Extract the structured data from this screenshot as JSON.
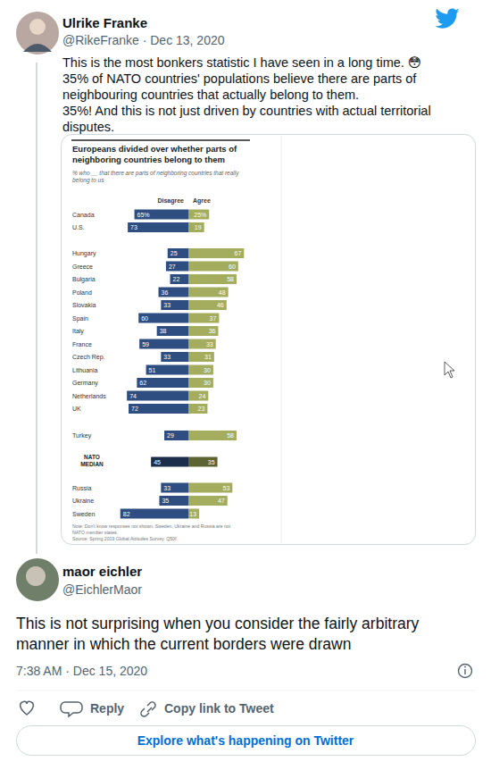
{
  "tweet": {
    "author_name": "Ulrike Franke",
    "byline": "@RikeFranke · Dec 13, 2020",
    "text_lines": [
      "This is the most bonkers statistic I have seen in a long time. 😳",
      "35% of NATO countries' populations believe there are parts of",
      "neighbouring countries that actually belong to them.",
      "35%! And this is not just driven by countries with actual territorial",
      "disputes."
    ]
  },
  "chart_data": {
    "type": "bar",
    "orientation": "horizontal",
    "title": "Europeans divided over whether parts of neighboring countries belong to them",
    "subtitle": "% who __ that there are parts of neighboring countries that really belong to us",
    "note": "Note: Don't know responses not shown. Sweden, Ukraine and Russia are not NATO member states.",
    "source": "Source: Spring 2019 Global Attitudes Survey. Q50f.",
    "categories": [
      "Canada",
      "U.S.",
      "Hungary",
      "Greece",
      "Bulgaria",
      "Poland",
      "Slovakia",
      "Spain",
      "Italy",
      "France",
      "Czech Rep.",
      "Lithuania",
      "Germany",
      "Netherlands",
      "UK",
      "Turkey",
      "NATO MEDIAN",
      "Russia",
      "Ukraine",
      "Sweden"
    ],
    "series": [
      {
        "name": "Disagree",
        "colors": [
          "#2e4d80",
          "#2e4d80",
          "#2e4d80",
          "#2e4d80",
          "#2e4d80",
          "#2e4d80",
          "#2e4d80",
          "#2e4d80",
          "#2e4d80",
          "#2e4d80",
          "#2e4d80",
          "#2e4d80",
          "#2e4d80",
          "#2e4d80",
          "#2e4d80",
          "#2e4d80",
          "#1c2d4b",
          "#2e4d80",
          "#2e4d80",
          "#2e4d80"
        ],
        "values": [
          65,
          73,
          25,
          27,
          22,
          36,
          33,
          60,
          38,
          59,
          33,
          51,
          62,
          74,
          72,
          29,
          45,
          33,
          35,
          82
        ],
        "value_labels": [
          "65%",
          "73",
          "25",
          "27",
          "22",
          "36",
          "33",
          "60",
          "38",
          "59",
          "33",
          "51",
          "62",
          "74",
          "72",
          "29",
          "45",
          "33",
          "35",
          "82"
        ]
      },
      {
        "name": "Agree",
        "colors": [
          "#a4ac5e",
          "#a4ac5e",
          "#a4ac5e",
          "#a4ac5e",
          "#a4ac5e",
          "#a4ac5e",
          "#a4ac5e",
          "#a4ac5e",
          "#a4ac5e",
          "#a4ac5e",
          "#a4ac5e",
          "#a4ac5e",
          "#a4ac5e",
          "#a4ac5e",
          "#a4ac5e",
          "#a4ac5e",
          "#5c6434",
          "#a4ac5e",
          "#a4ac5e",
          "#a4ac5e"
        ],
        "values": [
          25,
          19,
          67,
          60,
          58,
          48,
          46,
          37,
          36,
          33,
          31,
          30,
          30,
          24,
          23,
          58,
          35,
          53,
          47,
          13
        ],
        "value_labels": [
          "25%",
          "19",
          "67",
          "60",
          "58",
          "48",
          "46",
          "37",
          "36",
          "33",
          "31",
          "30",
          "30",
          "24",
          "23",
          "58",
          "35",
          "53",
          "47",
          "13"
        ]
      }
    ],
    "data_labels": true,
    "tick_labels": "y"
  },
  "reply": {
    "author_name": "maor eichler",
    "author_handle": "@EichlerMaor",
    "text_lines": [
      "This is not surprising when you consider the fairly arbitrary",
      "manner in which the current borders were drawn"
    ],
    "timestamp": "7:38 AM · Dec 15, 2020"
  },
  "actions": {
    "reply": "Reply",
    "copy_link": "Copy link to Tweet",
    "explore": "Explore what's happening on Twitter"
  }
}
